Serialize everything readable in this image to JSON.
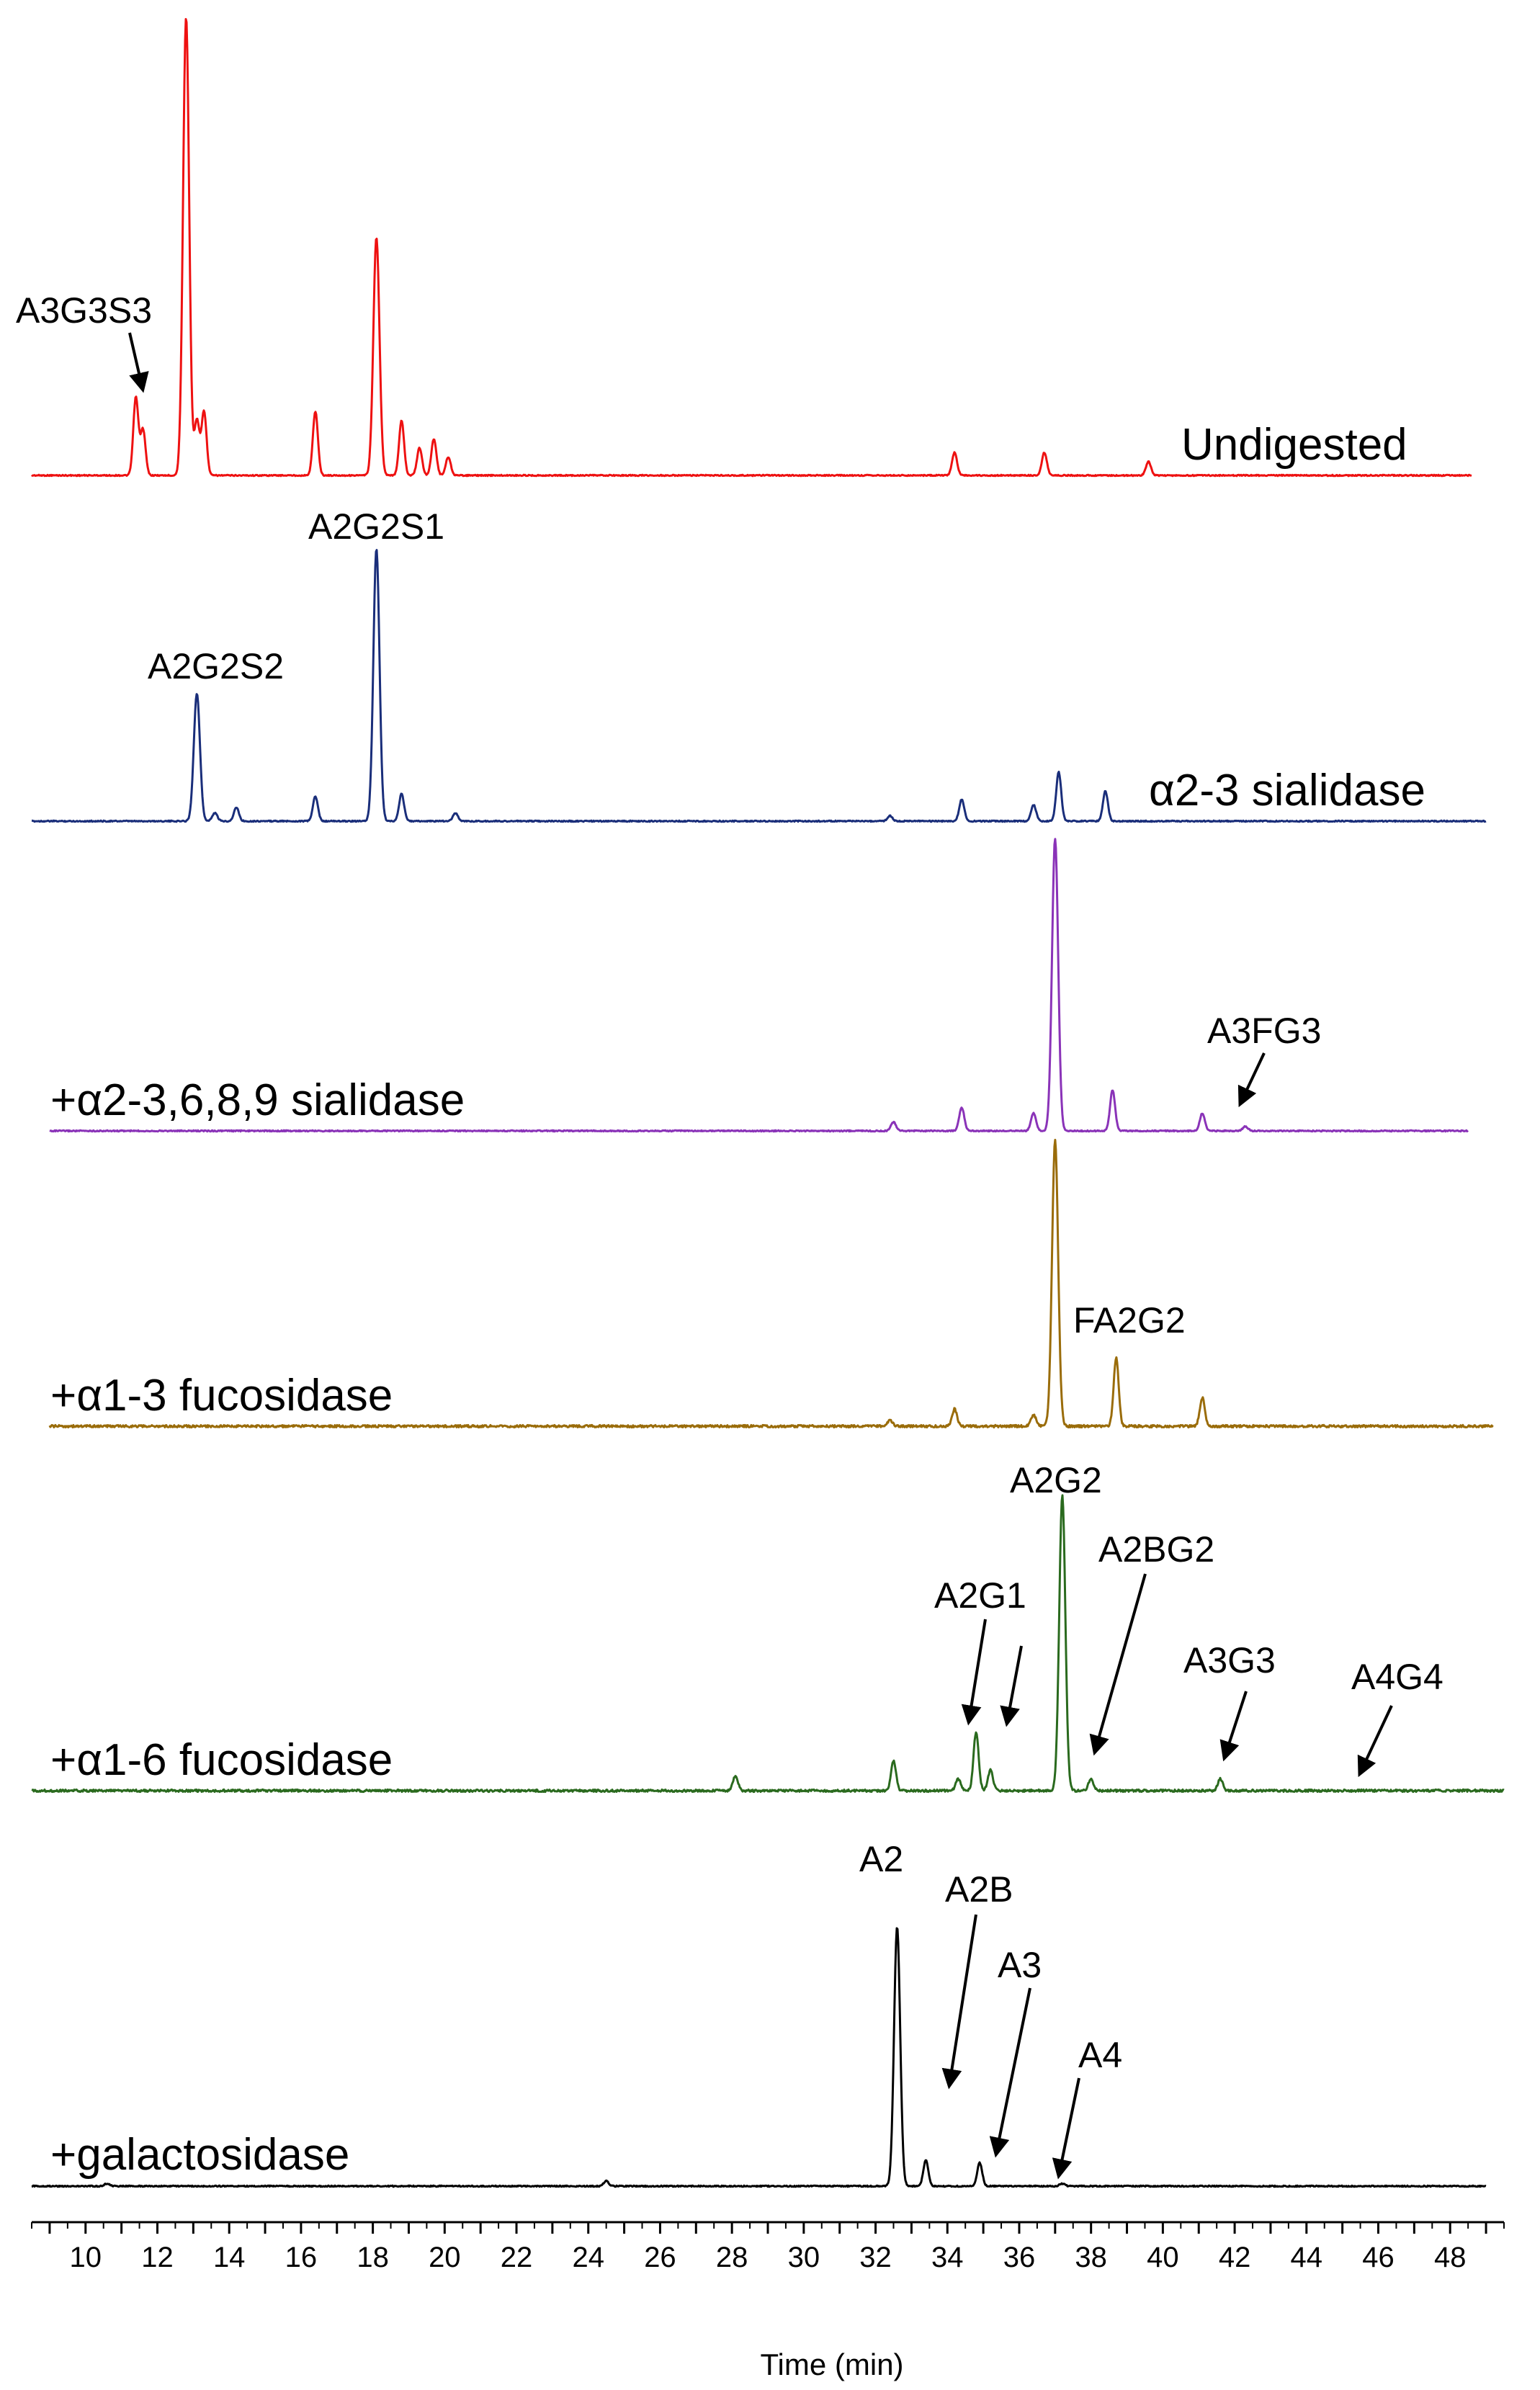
{
  "chart_data": {
    "type": "line",
    "xlabel": "Time (min)",
    "xlim": [
      8.5,
      49.5
    ],
    "x_ticks": [
      10,
      12,
      14,
      16,
      18,
      20,
      22,
      24,
      26,
      28,
      30,
      32,
      34,
      36,
      38,
      40,
      42,
      44,
      46,
      48
    ],
    "grid": false,
    "legend": "none",
    "series": [
      {
        "name": "Undigested",
        "color": "#ee1111",
        "x_range": [
          8.5,
          48.6
        ],
        "peaks": [
          {
            "t": 11.4,
            "h": 0.17
          },
          {
            "t": 11.6,
            "h": 0.1
          },
          {
            "t": 12.8,
            "h": 1.0
          },
          {
            "t": 13.1,
            "h": 0.12
          },
          {
            "t": 13.3,
            "h": 0.14
          },
          {
            "t": 16.4,
            "h": 0.14
          },
          {
            "t": 18.1,
            "h": 0.52
          },
          {
            "t": 18.8,
            "h": 0.12
          },
          {
            "t": 19.3,
            "h": 0.06
          },
          {
            "t": 19.7,
            "h": 0.08
          },
          {
            "t": 20.1,
            "h": 0.04
          },
          {
            "t": 34.2,
            "h": 0.05
          },
          {
            "t": 36.7,
            "h": 0.05
          },
          {
            "t": 39.6,
            "h": 0.03
          }
        ],
        "annotations": [
          {
            "text": "A3G3S3",
            "t": 11.4,
            "arrow": true
          }
        ]
      },
      {
        "name": "α2-3 sialidase",
        "color": "#1a2e7a",
        "x_range": [
          8.5,
          49.0
        ],
        "peaks": [
          {
            "t": 13.1,
            "h": 0.47
          },
          {
            "t": 13.6,
            "h": 0.03
          },
          {
            "t": 14.2,
            "h": 0.05
          },
          {
            "t": 16.4,
            "h": 0.09
          },
          {
            "t": 18.1,
            "h": 1.0
          },
          {
            "t": 18.8,
            "h": 0.1
          },
          {
            "t": 20.3,
            "h": 0.03
          },
          {
            "t": 32.4,
            "h": 0.02
          },
          {
            "t": 34.4,
            "h": 0.08
          },
          {
            "t": 36.4,
            "h": 0.06
          },
          {
            "t": 37.1,
            "h": 0.18
          },
          {
            "t": 38.4,
            "h": 0.11
          }
        ],
        "annotations": [
          {
            "text": "A2G2S2",
            "t": 13.1,
            "arrow": false
          },
          {
            "text": "A2G2S1",
            "t": 18.1,
            "arrow": false
          }
        ]
      },
      {
        "name": "+α2-3,6,8,9 sialidase",
        "color": "#8a33b8",
        "x_range": [
          9.0,
          48.5
        ],
        "peaks": [
          {
            "t": 32.5,
            "h": 0.03
          },
          {
            "t": 34.4,
            "h": 0.08
          },
          {
            "t": 36.4,
            "h": 0.06
          },
          {
            "t": 37.0,
            "h": 1.0
          },
          {
            "t": 38.6,
            "h": 0.14
          },
          {
            "t": 41.1,
            "h": 0.06
          },
          {
            "t": 42.3,
            "h": 0.015
          }
        ],
        "annotations": [
          {
            "text": "A3FG3",
            "t": 42.3,
            "arrow": true
          }
        ]
      },
      {
        "name": "+α1-3 fucosidase",
        "color": "#9a6c0a",
        "x_range": [
          9.0,
          49.2
        ],
        "peaks": [
          {
            "t": 32.4,
            "h": 0.02
          },
          {
            "t": 34.2,
            "h": 0.06
          },
          {
            "t": 36.4,
            "h": 0.04
          },
          {
            "t": 37.0,
            "h": 1.0
          },
          {
            "t": 38.7,
            "h": 0.24
          },
          {
            "t": 41.1,
            "h": 0.1
          }
        ],
        "annotations": [
          {
            "text": "FA2G2",
            "t": 38.7,
            "arrow": false
          }
        ]
      },
      {
        "name": "+α1-6 fucosidase",
        "color": "#2a6a1e",
        "x_range": [
          8.5,
          49.5
        ],
        "peaks": [
          {
            "t": 28.1,
            "h": 0.05
          },
          {
            "t": 32.5,
            "h": 0.1
          },
          {
            "t": 34.3,
            "h": 0.04
          },
          {
            "t": 34.8,
            "h": 0.2
          },
          {
            "t": 35.2,
            "h": 0.07
          },
          {
            "t": 37.2,
            "h": 1.0
          },
          {
            "t": 38.0,
            "h": 0.04
          },
          {
            "t": 41.6,
            "h": 0.04
          }
        ],
        "annotations": [
          {
            "text": "A2G1",
            "t": 35.2,
            "arrow": true
          },
          {
            "text": "A2G2",
            "t": 37.2,
            "arrow": false
          },
          {
            "text": "A2BG2",
            "t": 38.0,
            "arrow": true
          },
          {
            "text": "A3G3",
            "t": 41.6,
            "arrow": true
          },
          {
            "text": "A4G4",
            "t": 45.6,
            "arrow": true
          }
        ]
      },
      {
        "name": "+galactosidase",
        "color": "#000000",
        "x_range": [
          8.5,
          49.0
        ],
        "peaks": [
          {
            "t": 10.6,
            "h": 0.01
          },
          {
            "t": 24.5,
            "h": 0.02
          },
          {
            "t": 32.6,
            "h": 1.0
          },
          {
            "t": 33.4,
            "h": 0.1
          },
          {
            "t": 34.9,
            "h": 0.09
          },
          {
            "t": 37.2,
            "h": 0.01
          }
        ],
        "annotations": [
          {
            "text": "A2",
            "t": 32.6,
            "arrow": false
          },
          {
            "text": "A2B",
            "t": 34.0,
            "arrow": true
          },
          {
            "text": "A3",
            "t": 35.6,
            "arrow": true
          },
          {
            "text": "A4",
            "t": 37.2,
            "arrow": true
          }
        ]
      }
    ]
  }
}
